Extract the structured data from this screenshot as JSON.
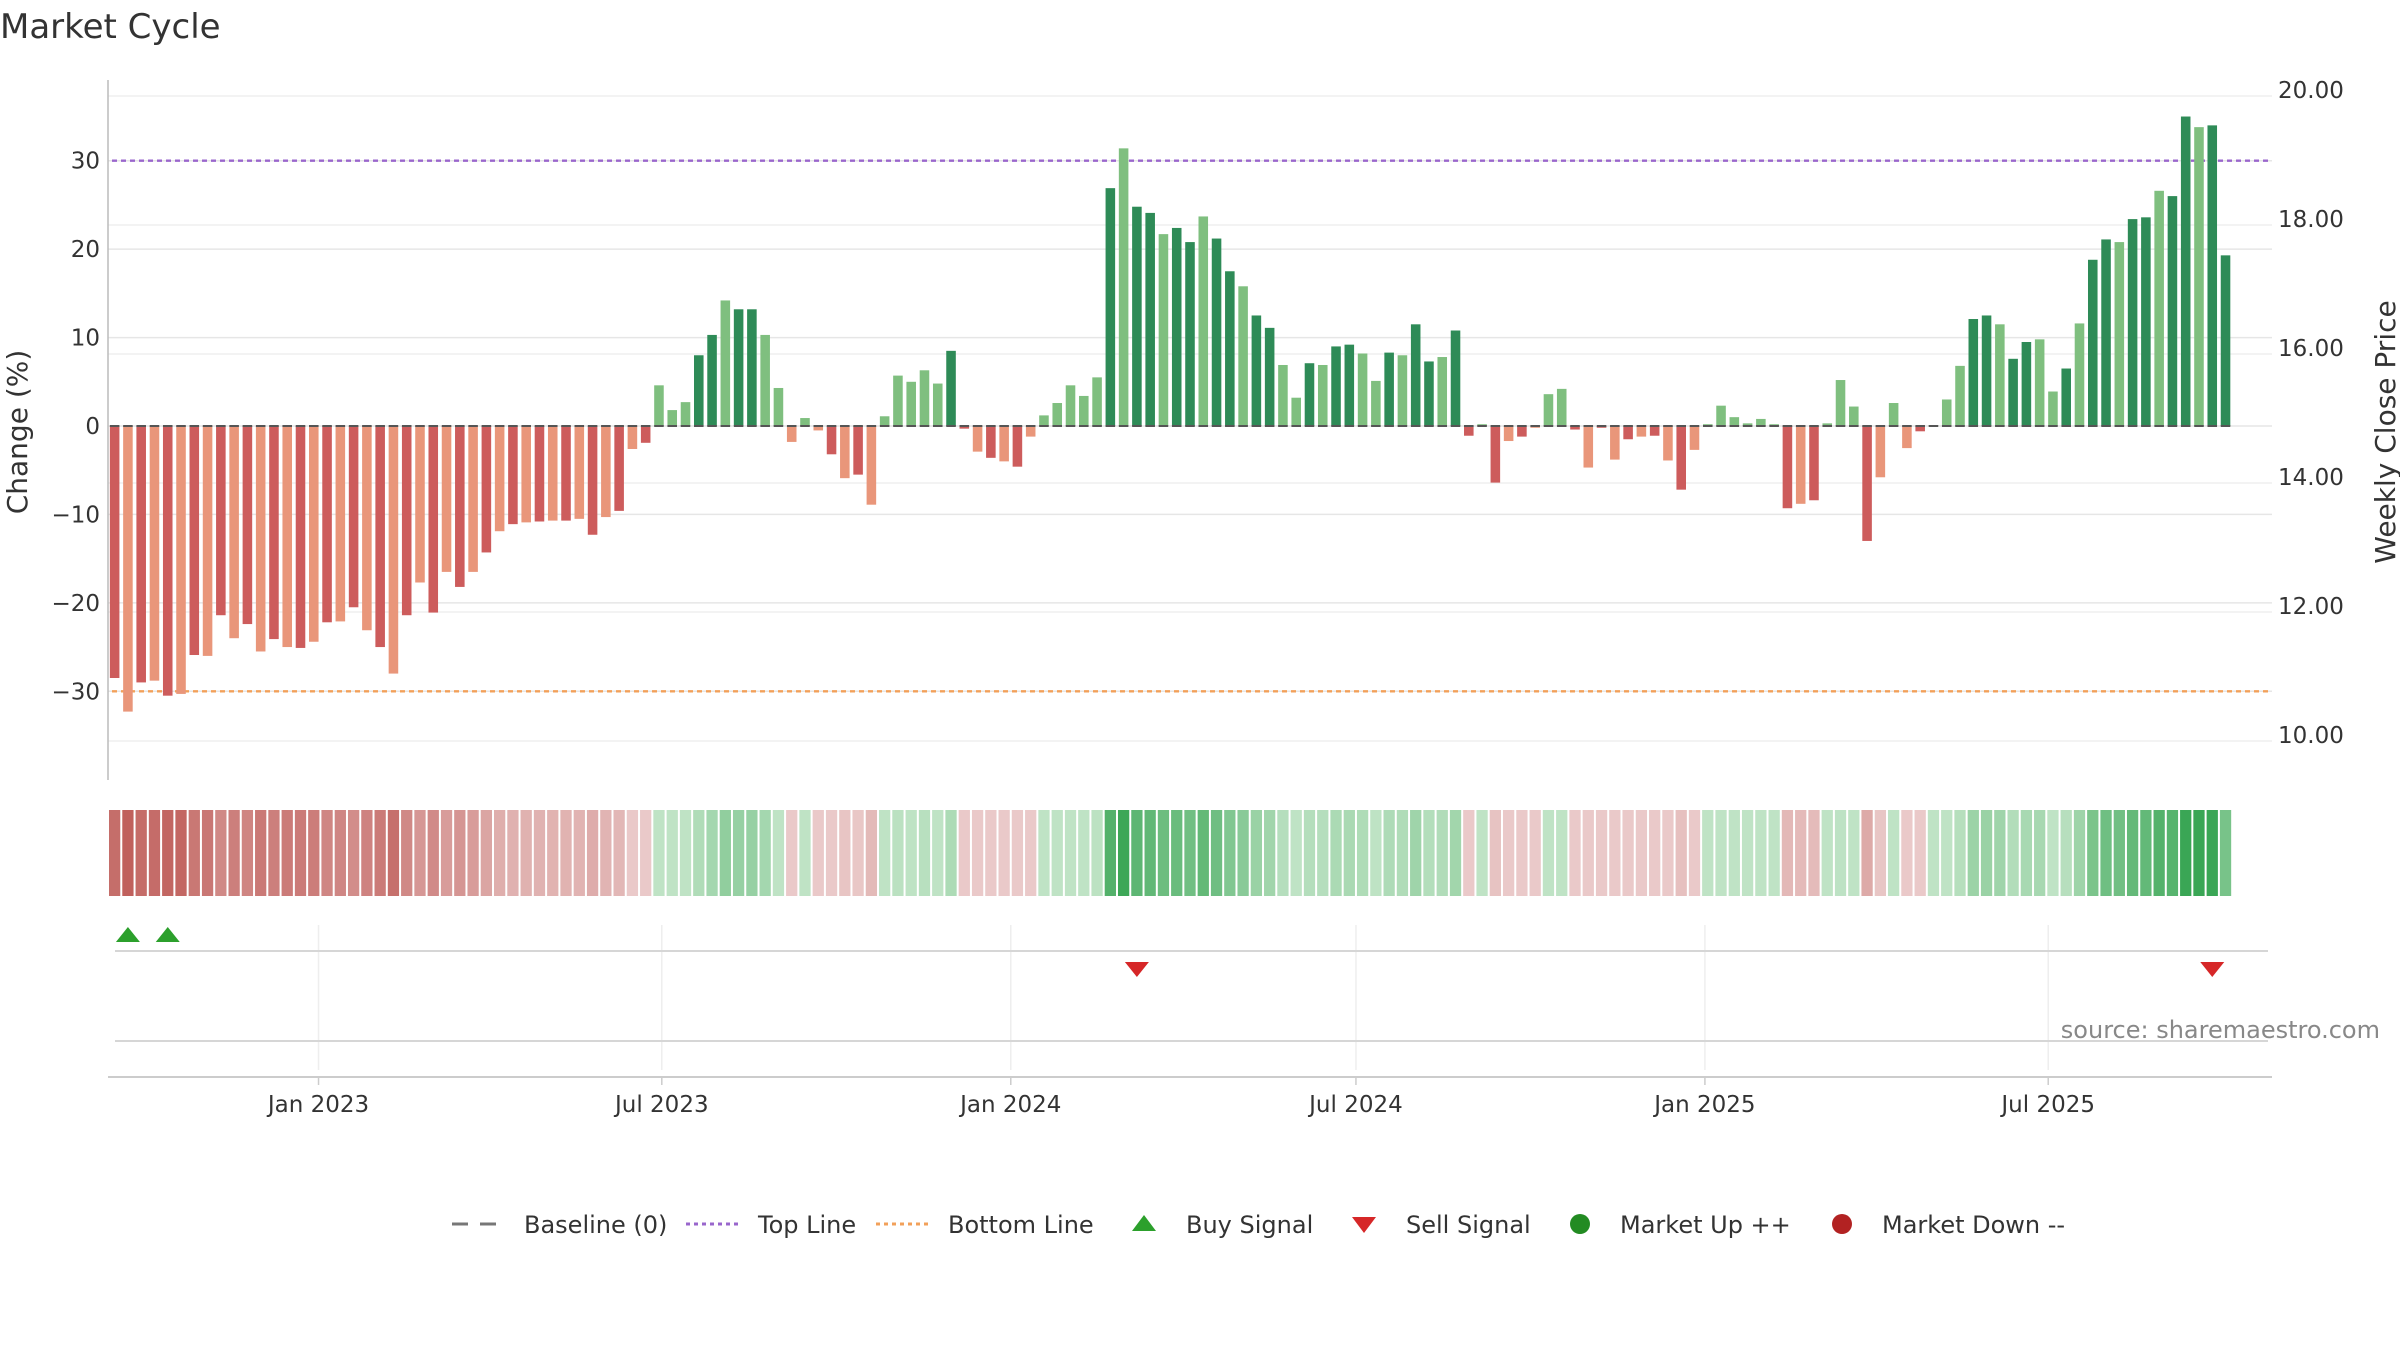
{
  "chart_data": {
    "type": "bar",
    "title": "Market Cycle",
    "ylabel": "Change (%)",
    "ylabel_right": "Weekly Close Price",
    "ylim": [
      -38,
      38
    ],
    "ylim_right": [
      9.0,
      20.5
    ],
    "yticks": [
      30,
      20,
      10,
      0,
      -10,
      -20,
      -30
    ],
    "yticks_right": [
      "20.00",
      "18.00",
      "16.00",
      "14.00",
      "12.00",
      "10.00"
    ],
    "grid": true,
    "x_start": "2022-09-12",
    "x_end": "2025-10-27",
    "xticks": [
      "Jan 2023",
      "Jul 2023",
      "Jan 2024",
      "Jul 2024",
      "Jan 2025",
      "Jul 2025"
    ],
    "x_tick_dates": [
      "2023-01-01",
      "2023-07-01",
      "2024-01-01",
      "2024-07-01",
      "2025-01-01",
      "2025-07-01"
    ],
    "reference_lines": [
      {
        "name": "Baseline (0)",
        "value": 0,
        "color": "#777777",
        "style": "dashed"
      },
      {
        "name": "Top Line",
        "value": 30,
        "color": "#9966cc",
        "style": "dotted"
      },
      {
        "name": "Bottom Line",
        "value": -30,
        "color": "#f2a05a",
        "style": "dotted"
      }
    ],
    "colors": {
      "up_strong": "#2e8b57",
      "up_weak": "#7fbf7f",
      "down_strong": "#cd5c5c",
      "down_weak": "#e9967a"
    },
    "weekly_change": [
      -28.5,
      -32.3,
      -29.0,
      -28.8,
      -30.5,
      -30.3,
      -25.9,
      -26.0,
      -21.4,
      -24.0,
      -22.4,
      -25.5,
      -24.1,
      -25.0,
      -25.1,
      -24.4,
      -22.2,
      -22.1,
      -20.5,
      -23.1,
      -25.0,
      -28.0,
      -21.4,
      -17.7,
      -21.1,
      -16.5,
      -18.2,
      -16.5,
      -14.3,
      -11.9,
      -11.1,
      -10.9,
      -10.8,
      -10.7,
      -10.7,
      -10.5,
      -12.3,
      -10.3,
      -9.6,
      -2.6,
      -1.9,
      4.6,
      1.8,
      2.7,
      8.0,
      10.3,
      14.2,
      13.2,
      13.2,
      10.3,
      4.3,
      -1.8,
      0.9,
      -0.5,
      -3.2,
      -5.9,
      -5.5,
      -8.9,
      1.1,
      5.7,
      5.0,
      6.3,
      4.8,
      8.5,
      -0.3,
      -2.9,
      -3.6,
      -4.0,
      -4.6,
      -1.2,
      1.2,
      2.6,
      4.6,
      3.4,
      5.5,
      26.9,
      31.4,
      24.8,
      24.1,
      21.7,
      22.4,
      20.8,
      23.7,
      21.2,
      17.5,
      15.8,
      12.5,
      11.1,
      6.9,
      3.2,
      7.1,
      6.9,
      9.0,
      9.2,
      8.2,
      5.1,
      8.3,
      8.0,
      11.5,
      7.3,
      7.8,
      10.8,
      -1.1,
      0.2,
      -6.4,
      -1.7,
      -1.2,
      -0.2,
      3.6,
      4.2,
      -0.4,
      -4.7,
      -0.2,
      -3.8,
      -1.5,
      -1.2,
      -1.1,
      -3.9,
      -7.2,
      -2.7,
      0.2,
      2.3,
      1.0,
      0.3,
      0.8,
      0.2,
      -9.3,
      -8.8,
      -8.4,
      0.3,
      5.2,
      2.2,
      -13.0,
      -5.8,
      2.6,
      -2.5,
      -0.6,
      0.1,
      3.0,
      6.8,
      12.1,
      12.5,
      11.5,
      7.6,
      9.5,
      9.8,
      3.9,
      6.5,
      11.6,
      18.8,
      21.1,
      20.8,
      23.4,
      23.6,
      26.6,
      26.0,
      35.0,
      33.8,
      34.0,
      19.3
    ],
    "signals": [
      {
        "type": "Buy Signal",
        "date": "2022-09-19"
      },
      {
        "type": "Buy Signal",
        "date": "2022-10-10"
      },
      {
        "type": "Sell Signal",
        "date": "2024-03-04"
      },
      {
        "type": "Sell Signal",
        "date": "2025-09-22"
      }
    ],
    "legend": [
      {
        "label": "Baseline (0)",
        "kind": "dash",
        "color": "#777777"
      },
      {
        "label": "Top Line",
        "kind": "dot",
        "color": "#9966cc"
      },
      {
        "label": "Bottom Line",
        "kind": "dot",
        "color": "#f2a05a"
      },
      {
        "label": "Buy Signal",
        "kind": "tri-up",
        "color": "#2ca02c"
      },
      {
        "label": "Sell Signal",
        "kind": "tri-down",
        "color": "#d62728"
      },
      {
        "label": "Market Up ++",
        "kind": "circle",
        "color": "#228b22"
      },
      {
        "label": "Market Down --",
        "kind": "circle",
        "color": "#b22222"
      }
    ],
    "legend_position": "bottom",
    "source": "source: sharemaestro.com"
  }
}
